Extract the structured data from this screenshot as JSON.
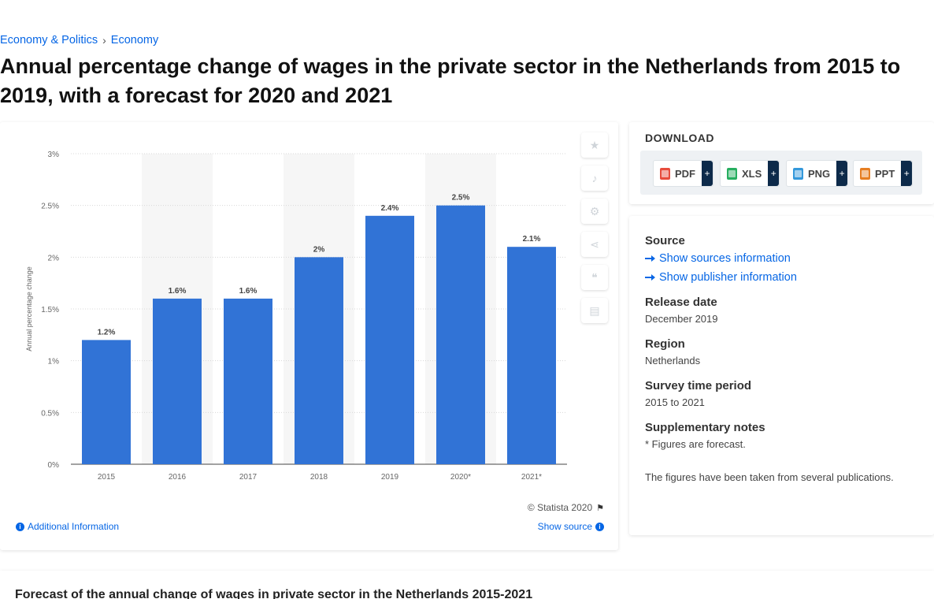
{
  "breadcrumb": [
    "Economy & Politics",
    "Economy"
  ],
  "page_title": "Annual percentage change of wages in the private sector in the Netherlands from 2015 to 2019, with a forecast for 2020 and 2021",
  "chart_data": {
    "type": "bar",
    "categories": [
      "2015",
      "2016",
      "2017",
      "2018",
      "2019",
      "2020*",
      "2021*"
    ],
    "values": [
      1.2,
      1.6,
      1.6,
      2.0,
      2.4,
      2.5,
      2.1
    ],
    "data_labels": [
      "1.2%",
      "1.6%",
      "1.6%",
      "2%",
      "2.4%",
      "2.5%",
      "2.1%"
    ],
    "title": "",
    "xlabel": "",
    "ylabel": "Annual percentage change",
    "ylim": [
      0,
      3
    ],
    "yticks": [
      0,
      0.5,
      1,
      1.5,
      2,
      2.5,
      3
    ],
    "ytick_labels": [
      "0%",
      "0.5%",
      "1%",
      "1.5%",
      "2%",
      "2.5%",
      "3%"
    ],
    "grid": true,
    "bar_color": "#3173d6",
    "band_color": "#f6f6f6"
  },
  "chart_footer": {
    "copyright": "© Statista 2020",
    "additional_info": "Additional Information",
    "show_source": "Show source"
  },
  "download": {
    "title": "DOWNLOAD",
    "formats": [
      {
        "label": "PDF",
        "icon": "pdf-file-icon"
      },
      {
        "label": "XLS",
        "icon": "xls-file-icon"
      },
      {
        "label": "PNG",
        "icon": "png-file-icon"
      },
      {
        "label": "PPT",
        "icon": "ppt-file-icon"
      }
    ],
    "plus": "+"
  },
  "meta": {
    "source_heading": "Source",
    "show_sources": "Show sources information",
    "show_publisher": "Show publisher information",
    "release_heading": "Release date",
    "release_value": "December 2019",
    "region_heading": "Region",
    "region_value": "Netherlands",
    "survey_heading": "Survey time period",
    "survey_value": "2015 to 2021",
    "notes_heading": "Supplementary notes",
    "notes_1": "* Figures are forecast.",
    "notes_2": "The figures have been taken from several publications."
  },
  "bottom": {
    "title": "Forecast of the annual change of wages in private sector in the Netherlands 2015-2021"
  }
}
